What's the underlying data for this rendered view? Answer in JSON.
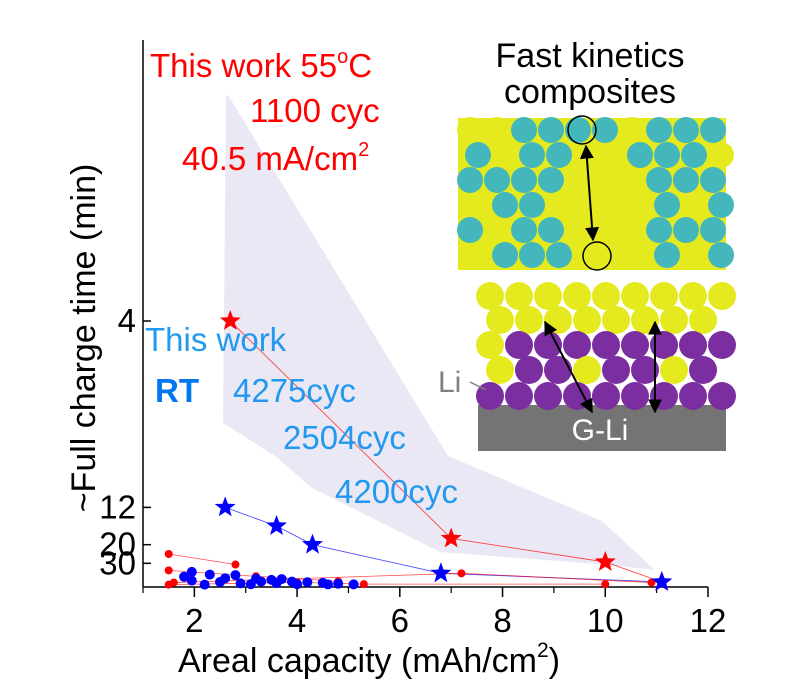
{
  "chart_data": {
    "type": "scatter",
    "xlabel": "Areal capacity (mAh/cm",
    "xlabel_sup": "2",
    "xlabel_end": ")",
    "ylabel": "~Full charge time (min)",
    "xlim": [
      1,
      12
    ],
    "x_ticks": [
      "2",
      "4",
      "6",
      "8",
      "10",
      "12"
    ],
    "y_ticks": [
      "4",
      "12",
      "20",
      "30"
    ],
    "y_scale": "reciprocal (charge rate)",
    "series": [
      {
        "group": "this-work-55C",
        "color": "#ff0000",
        "marker": "star",
        "points": [
          [
            2.7,
            4
          ],
          [
            7.0,
            18
          ],
          [
            10.0,
            29
          ],
          [
            11.1,
            60
          ]
        ]
      },
      {
        "group": "this-work-RT",
        "color": "#0000ff",
        "marker": "star",
        "points": [
          [
            2.6,
            12
          ],
          [
            3.6,
            15
          ],
          [
            4.3,
            20
          ],
          [
            6.8,
            41
          ],
          [
            11.1,
            60
          ]
        ]
      },
      {
        "group": "literature-red",
        "color": "#ff0000",
        "marker": "dot",
        "points": [
          [
            1.5,
            24
          ],
          [
            2.8,
            31
          ],
          [
            1.5,
            37
          ],
          [
            3.2,
            46
          ],
          [
            4.8,
            58
          ],
          [
            1.6,
            62
          ],
          [
            7.2,
            41
          ],
          [
            10.9,
            62
          ],
          [
            1.5,
            70
          ],
          [
            4.0,
            61
          ],
          [
            5.3,
            68
          ],
          [
            10.0,
            68
          ]
        ]
      },
      {
        "group": "literature-blue",
        "color": "#0000ff",
        "marker": "dot",
        "points": [
          [
            1.95,
            39
          ],
          [
            2.3,
            43
          ],
          [
            2.8,
            44
          ],
          [
            1.8,
            47
          ],
          [
            2.6,
            50
          ],
          [
            3.2,
            51
          ],
          [
            3.7,
            52
          ],
          [
            1.95,
            56
          ],
          [
            3.5,
            54
          ],
          [
            3.9,
            59
          ],
          [
            2.5,
            60
          ],
          [
            3.3,
            59
          ],
          [
            4.2,
            61
          ],
          [
            4.5,
            63
          ],
          [
            2.9,
            65
          ],
          [
            3.6,
            64
          ],
          [
            4.8,
            66
          ],
          [
            3.1,
            68
          ],
          [
            4.0,
            68
          ],
          [
            4.6,
            69
          ],
          [
            5.1,
            69
          ],
          [
            2.2,
            70
          ]
        ]
      }
    ],
    "annotations": {
      "red_line1": "This work 55",
      "red_sup": "o",
      "red_line1_end": "C",
      "red_line2": "1100 cyc",
      "red_line3": "40.5 mA/cm",
      "red_line3_sup": "2",
      "blue_title": "This work",
      "blue_rt": "RT",
      "blue_c1": "4275cyc",
      "blue_c2": "2504cyc",
      "blue_c3": "4200cyc"
    },
    "inset": {
      "title1": "Fast kinetics",
      "title2": "composites",
      "li_label": "Li",
      "gli_label": "G-Li",
      "colors": {
        "teal": "#43b7bb",
        "yellow": "#e5ea1f",
        "purple": "#7b2e9f",
        "gray": "#747474"
      }
    },
    "colors": {
      "red": "#ff0000",
      "blue": "#0000ff",
      "label_blue": "#2299ee",
      "shade": "#ebe8f5"
    }
  }
}
